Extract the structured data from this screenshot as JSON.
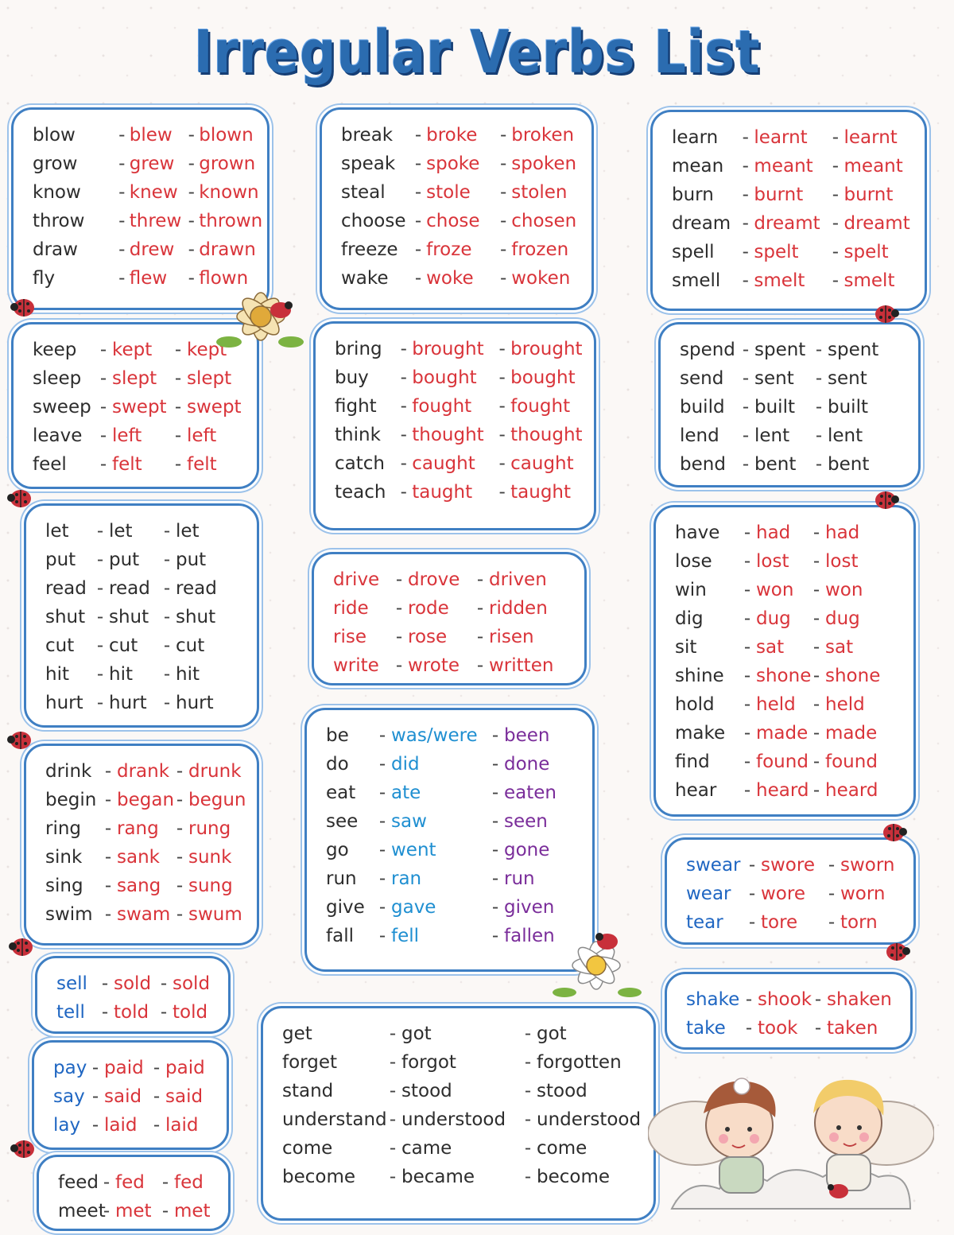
{
  "title": "Irregular Verbs List",
  "colors": {
    "frame": "#3f7fc3",
    "base_text": "#2d2d2d",
    "blue_text": "#1f66c2",
    "red_text": "#d9343a",
    "was_were": "#1f8fd1",
    "participle_purple": "#7a2d9a"
  },
  "boxes": {
    "b1": [
      [
        "blow",
        "blew",
        "blown"
      ],
      [
        "grow",
        "grew",
        "grown"
      ],
      [
        "know",
        "knew",
        "known"
      ],
      [
        "throw",
        "threw",
        "thrown"
      ],
      [
        "draw",
        "drew",
        "drawn"
      ],
      [
        "fly",
        "flew",
        "flown"
      ]
    ],
    "b2": [
      [
        "break",
        "broke",
        "broken"
      ],
      [
        "speak",
        "spoke",
        "spoken"
      ],
      [
        "steal",
        "stole",
        "stolen"
      ],
      [
        "choose",
        "chose",
        "chosen"
      ],
      [
        "freeze",
        "froze",
        "frozen"
      ],
      [
        "wake",
        "woke",
        "woken"
      ]
    ],
    "b3": [
      [
        "learn",
        "learnt",
        "learnt"
      ],
      [
        "mean",
        "meant",
        "meant"
      ],
      [
        "burn",
        "burnt",
        "burnt"
      ],
      [
        "dream",
        "dreamt",
        "dreamt"
      ],
      [
        "spell",
        "spelt",
        "spelt"
      ],
      [
        "smell",
        "smelt",
        "smelt"
      ]
    ],
    "b4": [
      [
        "keep",
        "kept",
        "kept"
      ],
      [
        "sleep",
        "slept",
        "slept"
      ],
      [
        "sweep",
        "swept",
        "swept"
      ],
      [
        "leave",
        "left",
        "left"
      ],
      [
        "feel",
        "felt",
        "felt"
      ]
    ],
    "b5": [
      [
        "bring",
        "brought",
        "brought"
      ],
      [
        "buy",
        "bought",
        "bought"
      ],
      [
        "fight",
        "fought",
        "fought"
      ],
      [
        "think",
        "thought",
        "thought"
      ],
      [
        "catch",
        "caught",
        "caught"
      ],
      [
        "teach",
        "taught",
        "taught"
      ]
    ],
    "b6": [
      [
        "spend",
        "spent",
        "spent"
      ],
      [
        "send",
        "sent",
        "sent"
      ],
      [
        "build",
        "built",
        "built"
      ],
      [
        "lend",
        "lent",
        "lent"
      ],
      [
        "bend",
        "bent",
        "bent"
      ]
    ],
    "b7": [
      [
        "let",
        "let",
        "let"
      ],
      [
        "put",
        "put",
        "put"
      ],
      [
        "read",
        "read",
        "read"
      ],
      [
        "shut",
        "shut",
        "shut"
      ],
      [
        "cut",
        "cut",
        "cut"
      ],
      [
        "hit",
        "hit",
        "hit"
      ],
      [
        "hurt",
        "hurt",
        "hurt"
      ]
    ],
    "b8": [
      [
        "drive",
        "drove",
        "driven"
      ],
      [
        "ride",
        "rode",
        "ridden"
      ],
      [
        "rise",
        "rose",
        "risen"
      ],
      [
        "write",
        "wrote",
        "written"
      ]
    ],
    "b9": [
      [
        "have",
        "had",
        "had"
      ],
      [
        "lose",
        "lost",
        "lost"
      ],
      [
        "win",
        "won",
        "won"
      ],
      [
        "dig",
        "dug",
        "dug"
      ],
      [
        "sit",
        "sat",
        "sat"
      ],
      [
        "shine",
        "shone",
        "shone"
      ],
      [
        "hold",
        "held",
        "held"
      ],
      [
        "make",
        "made",
        "made"
      ],
      [
        "find",
        "found",
        "found"
      ],
      [
        "hear",
        "heard",
        "heard"
      ]
    ],
    "b10": [
      [
        "drink",
        "drank",
        "drunk"
      ],
      [
        "begin",
        "began",
        "begun"
      ],
      [
        "ring",
        "rang",
        "rung"
      ],
      [
        "sink",
        "sank",
        "sunk"
      ],
      [
        "sing",
        "sang",
        "sung"
      ],
      [
        "swim",
        "swam",
        "swum"
      ]
    ],
    "b11": [
      [
        "be",
        "was/were",
        "been"
      ],
      [
        "do",
        "did",
        "done"
      ],
      [
        "eat",
        "ate",
        "eaten"
      ],
      [
        "see",
        "saw",
        "seen"
      ],
      [
        "go",
        "went",
        "gone"
      ],
      [
        "run",
        "ran",
        "run"
      ],
      [
        "give",
        "gave",
        "given"
      ],
      [
        "fall",
        "fell",
        "fallen"
      ]
    ],
    "b12": [
      [
        "swear",
        "swore",
        "sworn"
      ],
      [
        "wear",
        "wore",
        "worn"
      ],
      [
        "tear",
        "tore",
        "torn"
      ]
    ],
    "b13": [
      [
        "sell",
        "sold",
        "sold"
      ],
      [
        "tell",
        "told",
        "told"
      ]
    ],
    "b14": [
      [
        "shake",
        "shook",
        "shaken"
      ],
      [
        "take",
        "took",
        "taken"
      ]
    ],
    "b15": [
      [
        "pay",
        "paid",
        "paid"
      ],
      [
        "say",
        "said",
        "said"
      ],
      [
        "lay",
        "laid",
        "laid"
      ]
    ],
    "b16": [
      [
        "get",
        "got",
        "got"
      ],
      [
        "forget",
        "forgot",
        "forgotten"
      ],
      [
        "stand",
        "stood",
        "stood"
      ],
      [
        "understand",
        "understood",
        "understood"
      ],
      [
        "come",
        "came",
        "come"
      ],
      [
        "become",
        "became",
        "become"
      ]
    ],
    "b17": [
      [
        "feed",
        "fed",
        "fed"
      ],
      [
        "meet",
        "met",
        "met"
      ]
    ]
  },
  "separator": "-"
}
